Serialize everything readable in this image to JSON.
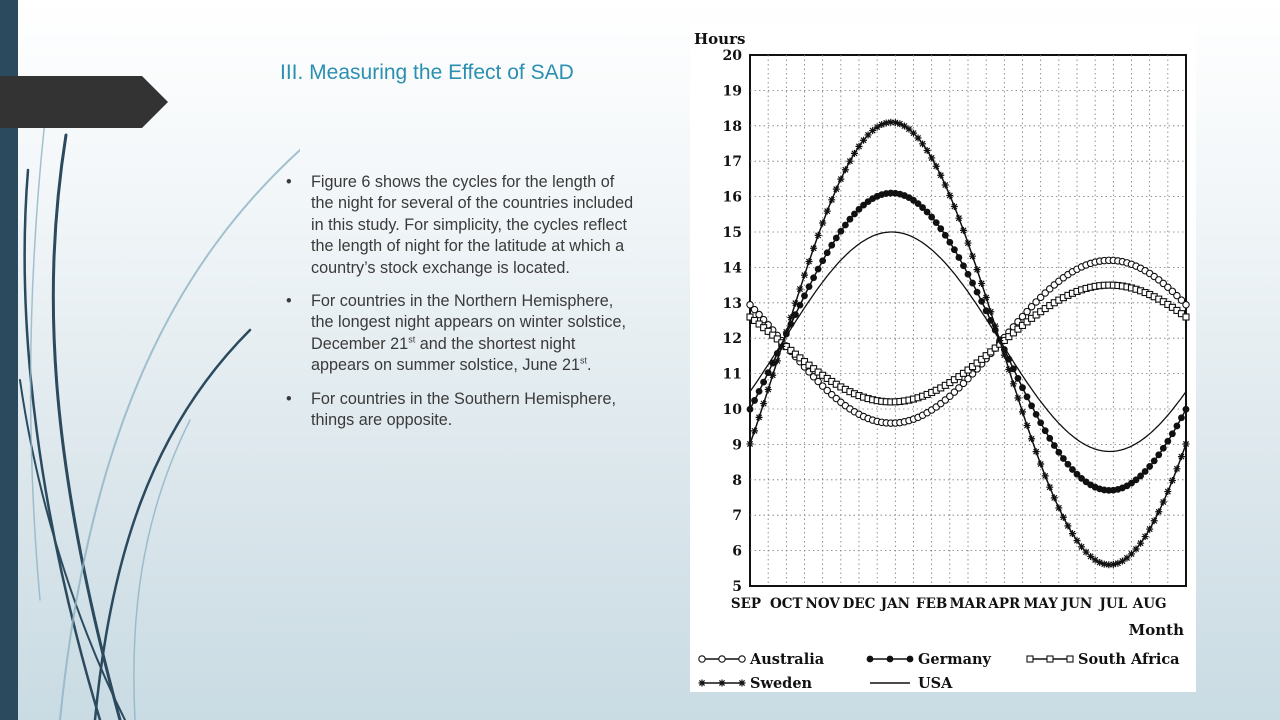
{
  "slide": {
    "title": "III. Measuring the Effect of SAD",
    "bullets": [
      {
        "text": "Figure 6 shows the cycles for the length of the night for several of the countries included in this study. For simplicity, the cycles reflect the length of night for the latitude at which a country’s stock exchange is located."
      },
      {
        "t1": "For countries in the Northern Hemisphere, the longest night appears on winter solstice, December 21",
        "sup1": "st",
        "t2": " and the shortest night appears on summer solstice, June 21",
        "sup2": "st",
        "t3": "."
      },
      {
        "text": "For countries in the Southern Hemisphere, things are opposite."
      }
    ],
    "colors": {
      "accent": "#2a8fb1",
      "bar": "#2b4a5e",
      "tab": "#333333"
    }
  },
  "chart_data": {
    "type": "line",
    "ylabel": "Hours",
    "xlabel": "Month",
    "ylim": [
      5,
      20
    ],
    "yticks": [
      5,
      6,
      7,
      8,
      9,
      10,
      11,
      12,
      13,
      14,
      15,
      16,
      17,
      18,
      19,
      20
    ],
    "months": [
      "SEP",
      "OCT",
      "NOV",
      "DEC",
      "JAN",
      "FEB",
      "MAR",
      "APR",
      "MAY",
      "JUN",
      "JUL",
      "AUG"
    ],
    "x_range": [
      "SEP",
      "AUG"
    ],
    "grid": true,
    "legend_position": "bottom",
    "series": [
      {
        "name": "Australia",
        "marker": "open-circle",
        "min": 9.6,
        "max": 14.2,
        "min_month": "JAN",
        "max_month": "JUL"
      },
      {
        "name": "Germany",
        "marker": "filled-circle",
        "min": 7.7,
        "max": 16.1,
        "min_month": "JUL",
        "max_month": "JAN"
      },
      {
        "name": "South Africa",
        "marker": "open-square",
        "min": 10.2,
        "max": 13.5,
        "min_month": "JAN",
        "max_month": "JUL"
      },
      {
        "name": "Sweden",
        "marker": "star",
        "min": 5.6,
        "max": 18.1,
        "min_month": "JUL",
        "max_month": "JAN"
      },
      {
        "name": "USA",
        "marker": "none",
        "min": 8.8,
        "max": 15.0,
        "min_month": "JUL",
        "max_month": "JAN"
      }
    ]
  }
}
